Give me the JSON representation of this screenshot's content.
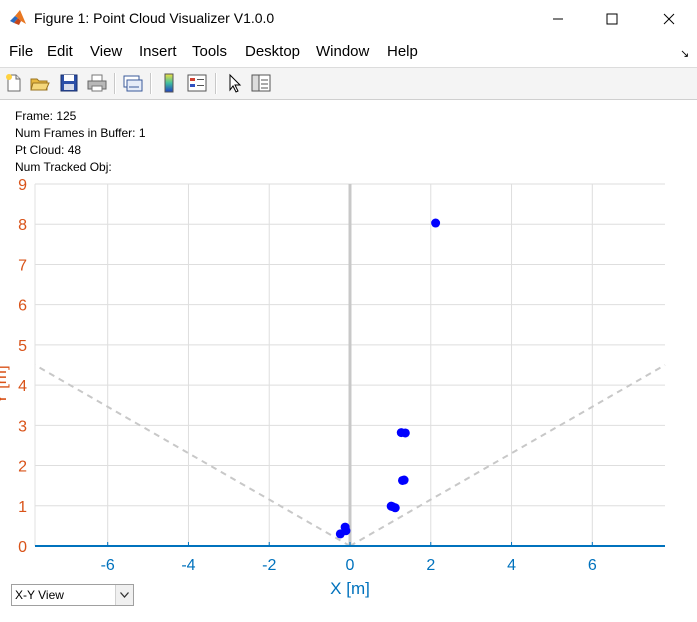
{
  "window": {
    "title": "Figure 1: Point Cloud Visualizer V1.0.0",
    "controls": [
      "minimize",
      "maximize",
      "close"
    ]
  },
  "menu": [
    "File",
    "Edit",
    "View",
    "Insert",
    "Tools",
    "Desktop",
    "Window",
    "Help"
  ],
  "toolbar": [
    "new-figure-icon",
    "open-file-icon",
    "save-icon",
    "print-icon",
    "link-plot-icon",
    "colorbar-icon",
    "legend-icon",
    "pointer-icon",
    "property-editor-icon"
  ],
  "info": {
    "frame": "Frame: 125",
    "num_frames_buffer": "Num Frames in Buffer: 1",
    "pt_cloud": "Pt Cloud: 48",
    "num_tracked_obj": "Num Tracked Obj:"
  },
  "view_select": {
    "value": "X-Y View"
  },
  "colors": {
    "x_axis": "#0072BD",
    "y_axis": "#D95319",
    "points": "#0000FF",
    "fov_lines": "#c8c8c8"
  },
  "chart_data": {
    "type": "scatter",
    "xlabel": "X [m]",
    "ylabel": "Y [m]",
    "xlim": [
      -7.8,
      7.8
    ],
    "ylim": [
      0,
      9
    ],
    "xticks": [
      -6,
      -4,
      -2,
      0,
      2,
      4,
      6
    ],
    "yticks": [
      0,
      1,
      2,
      3,
      4,
      5,
      6,
      7,
      8,
      9
    ],
    "grid": true,
    "points": [
      {
        "x": 2.12,
        "y": 8.03
      },
      {
        "x": 1.27,
        "y": 2.82
      },
      {
        "x": 1.37,
        "y": 2.81
      },
      {
        "x": 1.3,
        "y": 1.63
      },
      {
        "x": 1.34,
        "y": 1.64
      },
      {
        "x": 1.05,
        "y": 0.98
      },
      {
        "x": 1.12,
        "y": 0.95
      },
      {
        "x": 1.02,
        "y": 0.99
      },
      {
        "x": -0.12,
        "y": 0.47
      },
      {
        "x": -0.1,
        "y": 0.38
      },
      {
        "x": -0.24,
        "y": 0.3
      }
    ],
    "fov_lines": [
      {
        "x": [
          0,
          -7.8
        ],
        "y": [
          0,
          4.5
        ]
      },
      {
        "x": [
          0,
          7.8
        ],
        "y": [
          0,
          4.5
        ]
      }
    ]
  }
}
